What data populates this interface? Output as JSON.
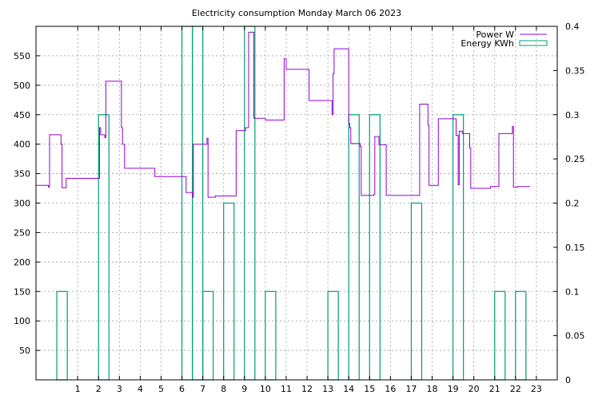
{
  "chart_data": {
    "type": "line",
    "title": "Electricity consumption Monday March 06 2023",
    "xlabel": "",
    "ylabel": "",
    "xlim": [
      -1,
      24
    ],
    "x_ticks": [
      1,
      2,
      3,
      4,
      5,
      6,
      7,
      8,
      9,
      10,
      11,
      12,
      13,
      14,
      15,
      16,
      17,
      18,
      19,
      20,
      21,
      22,
      23
    ],
    "ylim_left": [
      0,
      600
    ],
    "y_ticks_left": [
      50,
      100,
      150,
      200,
      250,
      300,
      350,
      400,
      450,
      500,
      550
    ],
    "ylim_right": [
      0,
      0.4
    ],
    "y_ticks_right": [
      0,
      0.05,
      0.1,
      0.15,
      0.2,
      0.25,
      0.3,
      0.35,
      0.4
    ],
    "y_tick_labels_right": [
      "0",
      "0.05",
      "0.1",
      "0.15",
      "0.2",
      "0.25",
      "0.3",
      "0.35",
      "0.4"
    ],
    "grid": true,
    "legend_position": "top-right",
    "series": [
      {
        "name": "Power W",
        "axis": "left",
        "style": "step-line",
        "color": "#9400d3",
        "points": [
          [
            -1.0,
            330
          ],
          [
            -0.4,
            330
          ],
          [
            -0.4,
            327
          ],
          [
            -0.35,
            327
          ],
          [
            -0.35,
            416
          ],
          [
            0.2,
            416
          ],
          [
            0.2,
            400
          ],
          [
            0.25,
            400
          ],
          [
            0.25,
            326
          ],
          [
            0.45,
            326
          ],
          [
            0.45,
            342
          ],
          [
            1.8,
            342
          ],
          [
            1.8,
            342
          ],
          [
            2.0,
            342
          ],
          [
            2.05,
            342
          ],
          [
            2.05,
            428
          ],
          [
            2.1,
            428
          ],
          [
            2.1,
            416
          ],
          [
            2.3,
            416
          ],
          [
            2.3,
            411
          ],
          [
            2.35,
            411
          ],
          [
            2.35,
            507
          ],
          [
            3.1,
            507
          ],
          [
            3.1,
            428
          ],
          [
            3.15,
            428
          ],
          [
            3.15,
            400
          ],
          [
            3.25,
            400
          ],
          [
            3.25,
            359
          ],
          [
            4.7,
            359
          ],
          [
            4.7,
            345
          ],
          [
            6.2,
            345
          ],
          [
            6.2,
            318
          ],
          [
            6.5,
            318
          ],
          [
            6.5,
            310
          ],
          [
            6.55,
            310
          ],
          [
            6.55,
            400
          ],
          [
            7.2,
            400
          ],
          [
            7.2,
            410
          ],
          [
            7.25,
            410
          ],
          [
            7.25,
            310
          ],
          [
            7.6,
            310
          ],
          [
            7.6,
            312
          ],
          [
            8.6,
            312
          ],
          [
            8.6,
            423
          ],
          [
            9.05,
            423
          ],
          [
            9.05,
            428
          ],
          [
            9.2,
            428
          ],
          [
            9.2,
            590
          ],
          [
            9.45,
            590
          ],
          [
            9.45,
            444
          ],
          [
            10.0,
            444
          ],
          [
            10.0,
            441
          ],
          [
            10.9,
            441
          ],
          [
            10.9,
            545
          ],
          [
            11.0,
            545
          ],
          [
            11.0,
            527
          ],
          [
            12.1,
            527
          ],
          [
            12.1,
            474
          ],
          [
            13.2,
            474
          ],
          [
            13.2,
            450
          ],
          [
            13.25,
            450
          ],
          [
            13.25,
            520
          ],
          [
            13.3,
            520
          ],
          [
            13.3,
            562
          ],
          [
            14.0,
            562
          ],
          [
            14.0,
            435
          ],
          [
            14.05,
            435
          ],
          [
            14.05,
            428
          ],
          [
            14.1,
            428
          ],
          [
            14.1,
            401
          ],
          [
            14.55,
            401
          ],
          [
            14.55,
            396
          ],
          [
            14.6,
            396
          ],
          [
            14.6,
            313
          ],
          [
            15.2,
            313
          ],
          [
            15.2,
            315
          ],
          [
            15.25,
            315
          ],
          [
            15.25,
            413
          ],
          [
            15.45,
            413
          ],
          [
            15.45,
            399
          ],
          [
            15.8,
            399
          ],
          [
            15.8,
            313
          ],
          [
            17.4,
            313
          ],
          [
            17.4,
            468
          ],
          [
            17.8,
            468
          ],
          [
            17.8,
            432
          ],
          [
            17.85,
            432
          ],
          [
            17.85,
            330
          ],
          [
            18.3,
            330
          ],
          [
            18.3,
            443
          ],
          [
            19.15,
            443
          ],
          [
            19.15,
            415
          ],
          [
            19.25,
            415
          ],
          [
            19.25,
            331
          ],
          [
            19.3,
            331
          ],
          [
            19.3,
            422
          ],
          [
            19.45,
            422
          ],
          [
            19.45,
            418
          ],
          [
            19.8,
            418
          ],
          [
            19.8,
            393
          ],
          [
            19.85,
            393
          ],
          [
            19.85,
            325
          ],
          [
            20.8,
            325
          ],
          [
            20.8,
            328
          ],
          [
            21.2,
            328
          ],
          [
            21.2,
            418
          ],
          [
            21.85,
            418
          ],
          [
            21.85,
            430
          ],
          [
            21.9,
            430
          ],
          [
            21.9,
            327
          ],
          [
            22.1,
            327
          ],
          [
            22.1,
            328
          ],
          [
            22.7,
            328
          ]
        ]
      },
      {
        "name": "Energy KWh",
        "axis": "right",
        "style": "boxes",
        "color": "#009e73",
        "bars": [
          {
            "x": 0.0,
            "value": 0.1
          },
          {
            "x": 2.0,
            "value": 0.3
          },
          {
            "x": 6.0,
            "value": 0.4
          },
          {
            "x": 6.5,
            "value": 0.4
          },
          {
            "x": 7.0,
            "value": 0.1
          },
          {
            "x": 8.0,
            "value": 0.2
          },
          {
            "x": 9.0,
            "value": 0.4
          },
          {
            "x": 10.0,
            "value": 0.1
          },
          {
            "x": 13.0,
            "value": 0.1
          },
          {
            "x": 14.0,
            "value": 0.3
          },
          {
            "x": 15.0,
            "value": 0.3
          },
          {
            "x": 17.0,
            "value": 0.2
          },
          {
            "x": 19.0,
            "value": 0.3
          },
          {
            "x": 21.0,
            "value": 0.1
          },
          {
            "x": 22.0,
            "value": 0.1
          }
        ],
        "bar_width": 0.5
      }
    ]
  }
}
